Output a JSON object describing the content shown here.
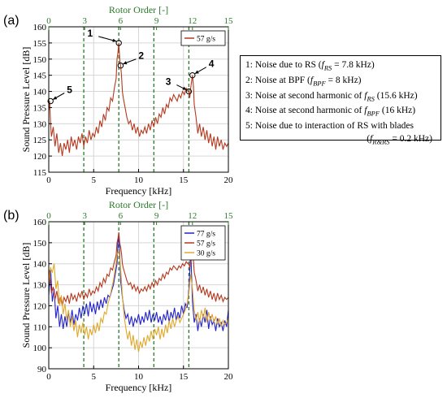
{
  "chart_data": [
    {
      "panel_label": "(a)",
      "type": "line",
      "xlabel": "Frequency [kHz]",
      "ylabel": "Sound Pressure Level [dB]",
      "top_axis_label": "Rotor Order [-]",
      "xlim": [
        0,
        20
      ],
      "ylim": [
        115,
        160
      ],
      "xticks": [
        "0",
        "5",
        "10",
        "15",
        "20"
      ],
      "yticks": [
        "115",
        "120",
        "125",
        "130",
        "135",
        "140",
        "145",
        "150",
        "155",
        "160"
      ],
      "top_ticks": [
        "0",
        "3",
        "6",
        "9",
        "12",
        "15"
      ],
      "rotor_order_lines_khz": [
        3.9,
        7.8,
        11.7,
        15.6
      ],
      "grid": true,
      "legend_position": "top-right",
      "series": [
        {
          "name": "57 g/s",
          "color": "#b5391e",
          "x": [
            0,
            0.1,
            0.2,
            0.3,
            0.5,
            0.7,
            0.9,
            1.1,
            1.3,
            1.5,
            1.7,
            1.9,
            2.1,
            2.3,
            2.5,
            2.7,
            2.9,
            3.1,
            3.3,
            3.5,
            3.7,
            3.9,
            4.1,
            4.3,
            4.5,
            4.7,
            4.9,
            5.1,
            5.3,
            5.5,
            5.7,
            5.9,
            6.1,
            6.3,
            6.5,
            6.7,
            6.9,
            7.1,
            7.3,
            7.5,
            7.6,
            7.7,
            7.8,
            7.9,
            8.0,
            8.1,
            8.2,
            8.3,
            8.5,
            8.7,
            8.9,
            9.1,
            9.3,
            9.5,
            9.7,
            9.9,
            10.1,
            10.3,
            10.5,
            10.7,
            10.9,
            11.1,
            11.3,
            11.5,
            11.7,
            11.9,
            12.1,
            12.3,
            12.5,
            12.7,
            12.9,
            13.1,
            13.3,
            13.5,
            13.7,
            13.9,
            14.1,
            14.3,
            14.5,
            14.7,
            14.9,
            15.1,
            15.3,
            15.5,
            15.6,
            15.7,
            15.8,
            15.9,
            16.0,
            16.1,
            16.2,
            16.4,
            16.6,
            16.8,
            17.0,
            17.2,
            17.4,
            17.6,
            17.8,
            18.0,
            18.2,
            18.4,
            18.6,
            18.8,
            19.0,
            19.2,
            19.4,
            19.6,
            19.8,
            20.0
          ],
          "y": [
            134,
            137,
            130,
            126,
            129,
            123,
            127,
            121,
            124,
            120,
            124,
            122,
            125,
            121,
            126,
            123,
            125,
            122,
            126,
            124,
            127,
            123,
            126,
            124,
            128,
            125,
            127,
            126,
            129,
            127,
            131,
            129,
            133,
            131,
            135,
            134,
            138,
            137,
            141,
            144,
            150,
            152,
            155,
            150,
            148,
            145,
            140,
            138,
            135,
            132,
            130,
            131,
            128,
            130,
            127,
            129,
            126,
            128,
            127,
            129,
            127,
            130,
            128,
            131,
            129,
            132,
            130,
            133,
            132,
            135,
            133,
            136,
            135,
            138,
            137,
            139,
            138,
            137,
            139,
            138,
            140,
            139,
            141,
            140,
            140,
            138,
            141,
            143,
            145,
            142,
            136,
            132,
            127,
            130,
            126,
            129,
            125,
            128,
            124,
            127,
            123,
            126,
            122,
            126,
            123,
            125,
            122,
            124,
            123,
            124
          ]
        }
      ],
      "annotations": [
        {
          "label": "1",
          "x": 7.8,
          "y": 155
        },
        {
          "label": "2",
          "x": 8.0,
          "y": 148
        },
        {
          "label": "3",
          "x": 15.6,
          "y": 140
        },
        {
          "label": "4",
          "x": 16.0,
          "y": 145
        },
        {
          "label": "5",
          "x": 0.2,
          "y": 137
        }
      ]
    },
    {
      "panel_label": "(b)",
      "type": "line",
      "xlabel": "Frequency [kHz]",
      "ylabel": "Sound Pressure Level [dB]",
      "top_axis_label": "Rotor Order [-]",
      "xlim": [
        0,
        20
      ],
      "ylim": [
        90,
        160
      ],
      "xticks": [
        "0",
        "5",
        "10",
        "15",
        "20"
      ],
      "yticks": [
        "90",
        "100",
        "110",
        "120",
        "130",
        "140",
        "150",
        "160"
      ],
      "top_ticks": [
        "0",
        "3",
        "6",
        "9",
        "12",
        "15"
      ],
      "rotor_order_lines_khz": [
        3.9,
        7.8,
        11.7,
        15.6
      ],
      "grid": true,
      "legend_position": "top-right",
      "series": [
        {
          "name": "77 g/s",
          "color": "#2222cc",
          "x": [
            0,
            0.2,
            0.4,
            0.6,
            0.8,
            1.0,
            1.2,
            1.4,
            1.6,
            1.8,
            2.0,
            2.2,
            2.4,
            2.6,
            2.8,
            3.0,
            3.2,
            3.4,
            3.6,
            3.8,
            4.0,
            4.2,
            4.4,
            4.6,
            4.8,
            5.0,
            5.2,
            5.4,
            5.6,
            5.8,
            6.0,
            6.2,
            6.4,
            6.6,
            6.8,
            7.0,
            7.2,
            7.4,
            7.6,
            7.7,
            7.8,
            7.9,
            8.0,
            8.2,
            8.4,
            8.6,
            8.8,
            9.0,
            9.2,
            9.4,
            9.6,
            9.8,
            10.0,
            10.2,
            10.4,
            10.6,
            10.8,
            11.0,
            11.2,
            11.4,
            11.6,
            11.8,
            12.0,
            12.2,
            12.4,
            12.6,
            12.8,
            13.0,
            13.2,
            13.4,
            13.6,
            13.8,
            14.0,
            14.2,
            14.4,
            14.6,
            14.8,
            15.0,
            15.2,
            15.4,
            15.6,
            15.7,
            15.8,
            15.9,
            16.0,
            16.2,
            16.4,
            16.6,
            16.8,
            17.0,
            17.2,
            17.4,
            17.6,
            17.8,
            18.0,
            18.2,
            18.4,
            18.6,
            18.8,
            19.0,
            19.2,
            19.4,
            19.6,
            19.8,
            20.0
          ],
          "y": [
            125,
            138,
            122,
            128,
            114,
            120,
            110,
            116,
            109,
            115,
            110,
            117,
            112,
            118,
            111,
            116,
            113,
            119,
            114,
            120,
            116,
            121,
            115,
            122,
            117,
            121,
            116,
            122,
            118,
            123,
            119,
            124,
            121,
            125,
            124,
            127,
            130,
            135,
            140,
            150,
            154,
            145,
            132,
            124,
            118,
            114,
            116,
            111,
            115,
            110,
            114,
            112,
            116,
            111,
            115,
            112,
            117,
            113,
            118,
            112,
            116,
            113,
            117,
            112,
            115,
            111,
            116,
            113,
            118,
            112,
            117,
            114,
            119,
            113,
            117,
            114,
            120,
            116,
            121,
            119,
            128,
            136,
            147,
            135,
            122,
            112,
            116,
            108,
            114,
            110,
            116,
            112,
            118,
            109,
            115,
            111,
            113,
            108,
            114,
            110,
            112,
            108,
            113,
            110,
            118
          ]
        },
        {
          "name": "57 g/s",
          "color": "#b5391e",
          "x": [
            0,
            0.1,
            0.2,
            0.3,
            0.5,
            0.7,
            0.9,
            1.1,
            1.3,
            1.5,
            1.7,
            1.9,
            2.1,
            2.3,
            2.5,
            2.7,
            2.9,
            3.1,
            3.3,
            3.5,
            3.7,
            3.9,
            4.1,
            4.3,
            4.5,
            4.7,
            4.9,
            5.1,
            5.3,
            5.5,
            5.7,
            5.9,
            6.1,
            6.3,
            6.5,
            6.7,
            6.9,
            7.1,
            7.3,
            7.5,
            7.6,
            7.7,
            7.8,
            7.9,
            8.0,
            8.1,
            8.2,
            8.3,
            8.5,
            8.7,
            8.9,
            9.1,
            9.3,
            9.5,
            9.7,
            9.9,
            10.1,
            10.3,
            10.5,
            10.7,
            10.9,
            11.1,
            11.3,
            11.5,
            11.7,
            11.9,
            12.1,
            12.3,
            12.5,
            12.7,
            12.9,
            13.1,
            13.3,
            13.5,
            13.7,
            13.9,
            14.1,
            14.3,
            14.5,
            14.7,
            14.9,
            15.1,
            15.3,
            15.5,
            15.6,
            15.7,
            15.8,
            15.9,
            16.0,
            16.1,
            16.2,
            16.4,
            16.6,
            16.8,
            17.0,
            17.2,
            17.4,
            17.6,
            17.8,
            18.0,
            18.2,
            18.4,
            18.6,
            18.8,
            19.0,
            19.2,
            19.4,
            19.6,
            19.8,
            20.0
          ],
          "y": [
            134,
            137,
            130,
            126,
            129,
            123,
            127,
            121,
            124,
            120,
            124,
            122,
            125,
            121,
            126,
            123,
            125,
            122,
            126,
            124,
            127,
            123,
            126,
            124,
            128,
            125,
            127,
            126,
            129,
            127,
            131,
            129,
            133,
            131,
            135,
            134,
            138,
            137,
            141,
            144,
            150,
            152,
            155,
            150,
            148,
            145,
            140,
            138,
            135,
            132,
            130,
            131,
            128,
            130,
            127,
            129,
            126,
            128,
            127,
            129,
            127,
            130,
            128,
            131,
            129,
            132,
            130,
            133,
            132,
            135,
            133,
            136,
            135,
            138,
            137,
            139,
            138,
            137,
            139,
            138,
            140,
            139,
            141,
            140,
            140,
            138,
            141,
            143,
            145,
            142,
            136,
            132,
            127,
            130,
            126,
            129,
            125,
            128,
            124,
            127,
            123,
            126,
            122,
            126,
            123,
            125,
            122,
            124,
            123,
            124
          ]
        },
        {
          "name": "30 g/s",
          "color": "#e0a82a",
          "x": [
            0,
            0.2,
            0.4,
            0.6,
            0.8,
            1.0,
            1.2,
            1.4,
            1.6,
            1.8,
            2.0,
            2.2,
            2.4,
            2.6,
            2.8,
            3.0,
            3.2,
            3.4,
            3.6,
            3.8,
            4.0,
            4.2,
            4.4,
            4.6,
            4.8,
            5.0,
            5.2,
            5.4,
            5.6,
            5.8,
            6.0,
            6.2,
            6.4,
            6.6,
            6.8,
            7.0,
            7.2,
            7.4,
            7.6,
            7.8,
            8.0,
            8.2,
            8.4,
            8.6,
            8.8,
            9.0,
            9.2,
            9.4,
            9.6,
            9.8,
            10.0,
            10.2,
            10.4,
            10.6,
            10.8,
            11.0,
            11.2,
            11.4,
            11.6,
            11.8,
            12.0,
            12.2,
            12.4,
            12.6,
            12.8,
            13.0,
            13.2,
            13.4,
            13.6,
            13.8,
            14.0,
            14.2,
            14.4,
            14.6,
            14.8,
            15.0,
            15.2,
            15.4,
            15.6,
            15.8,
            16.0,
            16.2,
            16.4,
            16.6,
            16.8,
            17.0,
            17.2,
            17.4,
            17.6,
            17.8,
            18.0,
            18.2,
            18.4,
            18.6,
            18.8,
            19.0,
            19.2,
            19.4,
            19.6,
            19.8,
            20.0
          ],
          "y": [
            130,
            138,
            136,
            140,
            128,
            132,
            120,
            125,
            116,
            121,
            113,
            118,
            110,
            115,
            108,
            113,
            105,
            111,
            107,
            112,
            106,
            110,
            104,
            109,
            106,
            111,
            107,
            112,
            108,
            114,
            112,
            117,
            116,
            121,
            124,
            128,
            132,
            138,
            144,
            147,
            138,
            125,
            115,
            109,
            104,
            108,
            101,
            106,
            99,
            104,
            98,
            103,
            100,
            105,
            101,
            106,
            103,
            108,
            104,
            109,
            106,
            110,
            104,
            109,
            105,
            111,
            107,
            113,
            109,
            114,
            110,
            113,
            115,
            112,
            114,
            116,
            118,
            121,
            126,
            135,
            128,
            118,
            113,
            117,
            112,
            118,
            114,
            119,
            112,
            117,
            113,
            116,
            112,
            115,
            111,
            114,
            110,
            113,
            111,
            112,
            114
          ]
        }
      ]
    }
  ],
  "notes_box": {
    "lines": [
      {
        "pre": "1: Noise due to RS (",
        "sym": "f",
        "sub": "RS",
        "post": " = 7.8 kHz)"
      },
      {
        "pre": "2: Noise at BPF (",
        "sym": "f",
        "sub": "BPF",
        "post": " = 8 kHz)"
      },
      {
        "pre": "3: Noise at second harmonic of ",
        "sym": "f",
        "sub": "RS",
        "post": " (15.6 kHz)"
      },
      {
        "pre": "4: Noise at second harmonic of ",
        "sym": "f",
        "sub": "BPF",
        "post": " (16 kHz)"
      },
      {
        "pre": "5: Noise due to interaction of RS with blades",
        "sym": "",
        "sub": "",
        "post": ""
      },
      {
        "pre": "(",
        "sym": "f",
        "sub": "R&RS",
        "post": " = 0.2 kHz)",
        "align": "right"
      }
    ]
  }
}
